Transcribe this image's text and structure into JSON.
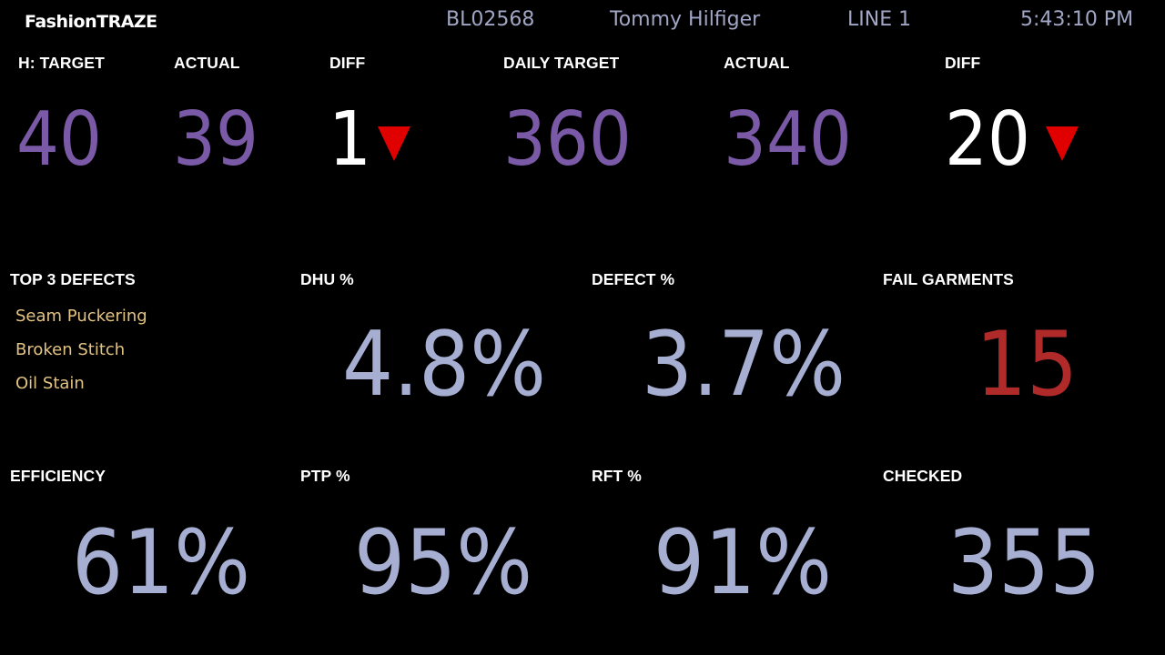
{
  "header": {
    "brand": "FashionTRAZE",
    "order": "BL02568",
    "customer": "Tommy Hilfiger",
    "line": "LINE 1",
    "time": "5:43:10 PM"
  },
  "hourly": {
    "target_label": "H: TARGET",
    "target": "40",
    "actual_label": "ACTUAL",
    "actual": "39",
    "diff_label": "DIFF",
    "diff": "1"
  },
  "daily": {
    "target_label": "DAILY TARGET",
    "target": "360",
    "actual_label": "ACTUAL",
    "actual": "340",
    "diff_label": "DIFF",
    "diff": "20"
  },
  "defects": {
    "label": "TOP 3 DEFECTS",
    "items": [
      "Seam Puckering",
      "Broken Stitch",
      "Oil Stain"
    ]
  },
  "metrics": {
    "dhu_label": "DHU %",
    "dhu": "4.8%",
    "defect_label": "DEFECT %",
    "defect": "3.7%",
    "fail_label": "FAIL GARMENTS",
    "fail": "15",
    "efficiency_label": "EFFICIENCY",
    "efficiency": "61%",
    "ptp_label": "PTP %",
    "ptp": "95%",
    "rft_label": "RFT %",
    "rft": "91%",
    "checked_label": "CHECKED",
    "checked": "355"
  },
  "icons": {
    "diff_indicator": "down-triangle-icon"
  },
  "colors": {
    "background": "#000000",
    "purple_value": "#7a5aa6",
    "slate_value": "#a6aed2",
    "alert_red": "#b02a2a",
    "indicator_red": "#e00000",
    "defect_text": "#e3c382",
    "header_info": "#a0a6c4"
  }
}
